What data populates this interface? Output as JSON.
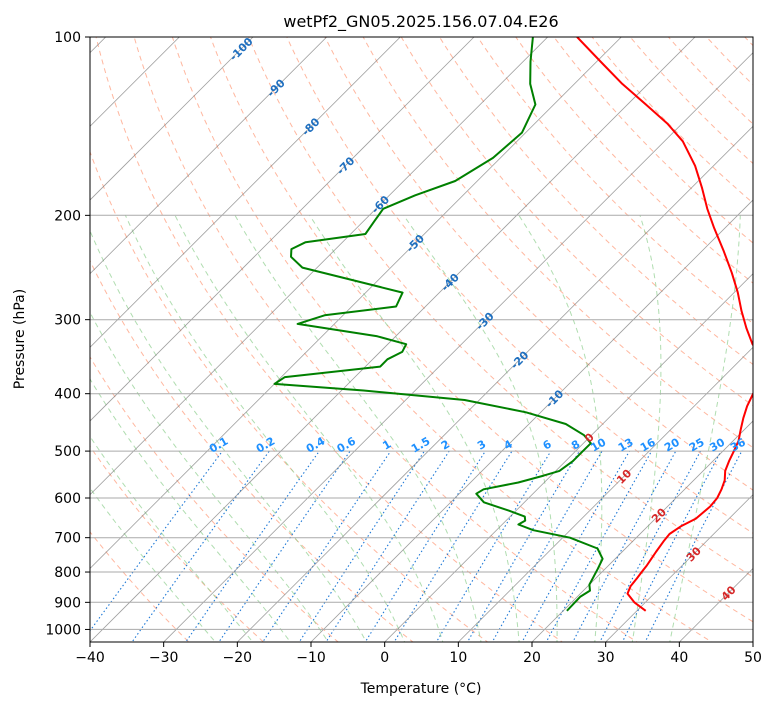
{
  "chart_data": {
    "type": "line",
    "title": "wetPf2_GN05.2025.156.07.04.E26",
    "xlabel": "Temperature (°C)",
    "ylabel": "Pressure (hPa)",
    "xlim": [
      -40,
      50
    ],
    "ylim": [
      1050,
      100
    ],
    "y_scale": "log",
    "x_ticks": [
      -40,
      -30,
      -20,
      -10,
      0,
      10,
      20,
      30,
      40,
      50
    ],
    "y_ticks": [
      100,
      200,
      300,
      400,
      500,
      600,
      700,
      800,
      900,
      1000
    ],
    "grid": true,
    "skew": 45,
    "colors": {
      "temperature": "#ff0000",
      "dewpoint": "#008000",
      "dry_adiabat": "#ff9f7f",
      "moist_adiabat": "#8fcf8f",
      "mixing_ratio": "#1e78d6",
      "isotherm": "#777777",
      "isobar": "#aaaaaa",
      "isotherm_label_cold": "#1f6fbf",
      "isotherm_label_warm": "#d62728",
      "mixing_label": "#1e90ff"
    },
    "series": [
      {
        "p": [
          930,
          900,
          870,
          845,
          820,
          800,
          780,
          760,
          740,
          710,
          690,
          670,
          650,
          620,
          600,
          580,
          560,
          540,
          520,
          500,
          480,
          460,
          440,
          420,
          400,
          385,
          375,
          365,
          350,
          330,
          310,
          290,
          270,
          250,
          230,
          210,
          195,
          180,
          165,
          150,
          140,
          130,
          120,
          110,
          100
        ],
        "t": [
          31.2,
          28.5,
          26.4,
          25.8,
          25.6,
          25.4,
          25.2,
          24.9,
          24.6,
          24.2,
          24.0,
          24.5,
          25.5,
          25.8,
          25.6,
          25.0,
          24.2,
          23.0,
          22.2,
          21.5,
          20.7,
          19.5,
          18.3,
          17.2,
          16.3,
          16.2,
          16.5,
          15.8,
          13.0,
          9.5,
          6.5,
          3.5,
          0.5,
          -3.0,
          -7.0,
          -11.5,
          -15.0,
          -18.5,
          -22.5,
          -27.5,
          -32.0,
          -37.5,
          -43.5,
          -49.5,
          -56.0
        ]
      },
      {
        "p": [
          930,
          880,
          860,
          840,
          810,
          790,
          760,
          730,
          700,
          680,
          665,
          655,
          645,
          630,
          610,
          590,
          580,
          565,
          550,
          540,
          520,
          500,
          485,
          470,
          450,
          430,
          410,
          395,
          385,
          375,
          360,
          350,
          340,
          330,
          320,
          305,
          295,
          285,
          270,
          255,
          245,
          235,
          228,
          222,
          215,
          205,
          195,
          185,
          175,
          160,
          145,
          130,
          120,
          110,
          100
        ],
        "t": [
          20.5,
          20.4,
          20.9,
          20.0,
          19.4,
          19.0,
          18.3,
          16.2,
          11.0,
          5.0,
          2.2,
          2.6,
          2.0,
          -1.0,
          -5.5,
          -7.7,
          -7.3,
          -3.5,
          -1.0,
          0.5,
          1.0,
          1.0,
          1.0,
          -1.0,
          -5.0,
          -12.0,
          -22.0,
          -37.0,
          -50.0,
          -49.5,
          -38.0,
          -38.0,
          -37.0,
          -37.5,
          -42.5,
          -55.0,
          -52.5,
          -44.0,
          -45.0,
          -55.0,
          -62.0,
          -65.0,
          -66.0,
          -65.0,
          -58.0,
          -58.5,
          -59.0,
          -56.5,
          -53.0,
          -51.0,
          -50.5,
          -52.5,
          -56.0,
          -59.0,
          -62.0
        ]
      }
    ],
    "isotherm_labels": [
      "-100",
      "-90",
      "-80",
      "-70",
      "-60",
      "-50",
      "-40",
      "-30",
      "-20",
      "-10",
      "0",
      "10",
      "20",
      "30",
      "40"
    ],
    "mixing_ratio_labels": [
      "0.1",
      "0.2",
      "0.4",
      "0.6",
      "1",
      "1.5",
      "2",
      "3",
      "4",
      "6",
      "8",
      "10",
      "13",
      "16",
      "20",
      "25",
      "30",
      "36"
    ]
  }
}
